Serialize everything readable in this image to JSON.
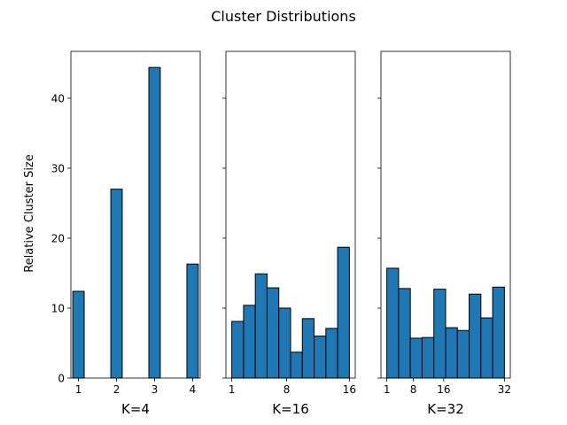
{
  "figure": {
    "title": "Cluster Distributions"
  },
  "style": {
    "bar_fill": "#1f77b4",
    "bar_edge": "#000000",
    "axes_edge": "#000000",
    "background": "#ffffff"
  },
  "chart_data": [
    {
      "type": "bar",
      "subplot": "K=4",
      "xlabel": "K=4",
      "ylabel": "Relative Cluster Size",
      "y_ticks": [
        "0",
        "10",
        "20",
        "30",
        "40"
      ],
      "x_ticks": [
        "1",
        "2",
        "3",
        "4"
      ],
      "ylim": [
        0,
        46.7
      ],
      "xlim": [
        0.8,
        4.2
      ],
      "bar_width": 0.3,
      "bars": [
        {
          "x": 1.0,
          "value": 12.4
        },
        {
          "x": 2.0,
          "value": 27.0
        },
        {
          "x": 3.0,
          "value": 44.4
        },
        {
          "x": 4.0,
          "value": 16.3
        }
      ],
      "grid": false
    },
    {
      "type": "bar",
      "subplot": "K=16",
      "xlabel": "K=16",
      "ylabel": "",
      "x_ticks": [
        "1",
        "8",
        "16"
      ],
      "ylim": [
        0,
        46.7
      ],
      "xlim": [
        0.25,
        16.75
      ],
      "bar_width": 1.5,
      "bars": [
        {
          "x": 1.75,
          "value": 8.1
        },
        {
          "x": 3.25,
          "value": 10.4
        },
        {
          "x": 4.75,
          "value": 14.9
        },
        {
          "x": 6.25,
          "value": 12.9
        },
        {
          "x": 7.75,
          "value": 10.0
        },
        {
          "x": 9.25,
          "value": 3.7
        },
        {
          "x": 10.75,
          "value": 8.5
        },
        {
          "x": 12.25,
          "value": 6.0
        },
        {
          "x": 13.75,
          "value": 7.1
        },
        {
          "x": 15.25,
          "value": 18.7
        }
      ],
      "grid": false
    },
    {
      "type": "bar",
      "subplot": "K=32",
      "xlabel": "K=32",
      "ylabel": "",
      "x_ticks": [
        "1",
        "8",
        "16",
        "32"
      ],
      "ylim": [
        0,
        46.7
      ],
      "xlim": [
        -0.55,
        33.55
      ],
      "bar_width": 3.1,
      "bars": [
        {
          "x": 2.55,
          "value": 15.7
        },
        {
          "x": 5.65,
          "value": 12.8
        },
        {
          "x": 8.75,
          "value": 5.7
        },
        {
          "x": 11.85,
          "value": 5.8
        },
        {
          "x": 14.95,
          "value": 12.7
        },
        {
          "x": 18.05,
          "value": 7.2
        },
        {
          "x": 21.15,
          "value": 6.8
        },
        {
          "x": 24.25,
          "value": 12.0
        },
        {
          "x": 27.35,
          "value": 8.6
        },
        {
          "x": 30.45,
          "value": 13.0
        }
      ],
      "grid": false
    }
  ]
}
